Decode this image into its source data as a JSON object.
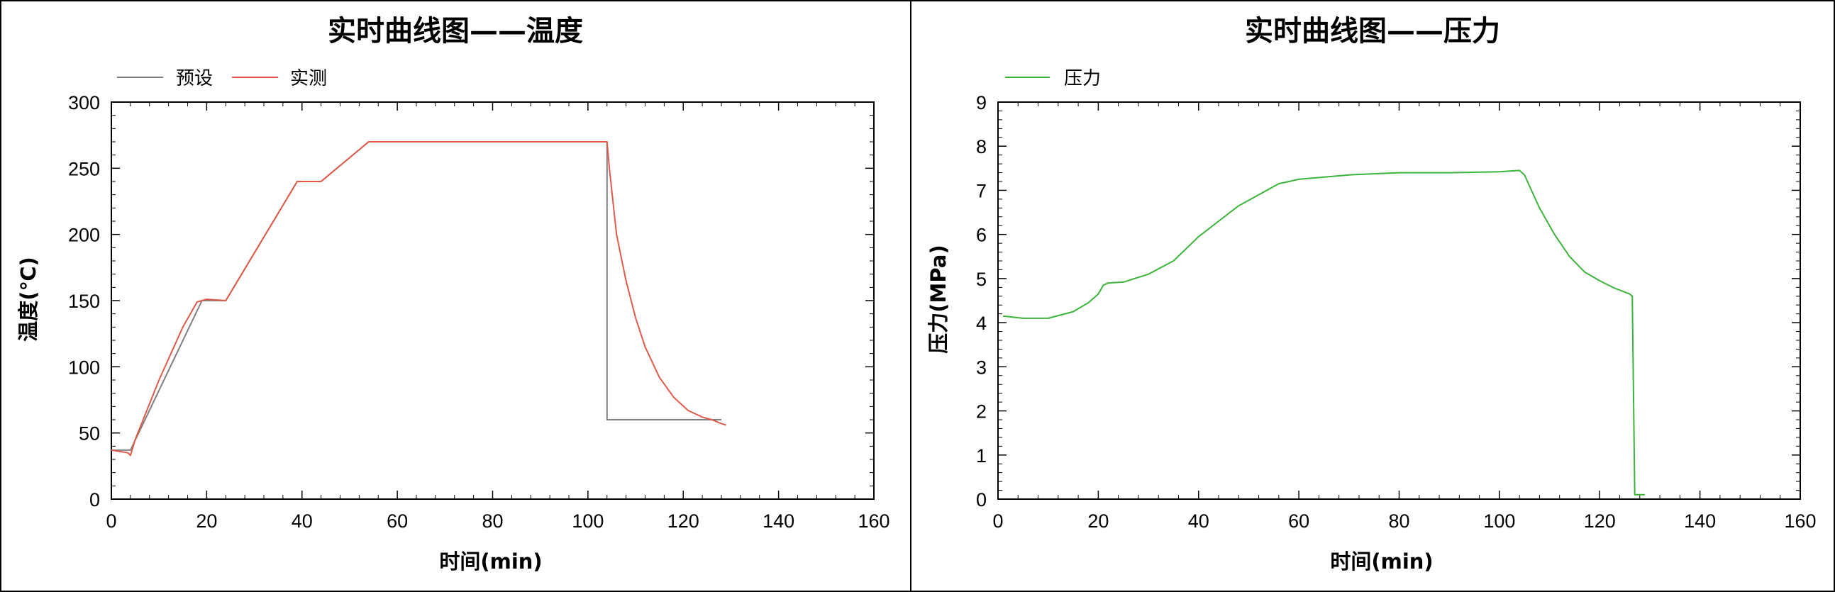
{
  "chart_data": [
    {
      "type": "line",
      "title": "实时曲线图——温度",
      "xlabel": "时间(min)",
      "ylabel": "温度(℃)",
      "xlim": [
        0,
        160
      ],
      "ylim": [
        0,
        300
      ],
      "xticks": [
        0,
        20,
        40,
        60,
        80,
        100,
        120,
        140,
        160
      ],
      "yticks": [
        0,
        50,
        100,
        150,
        200,
        250,
        300
      ],
      "legend_position": "top-left",
      "grid": false,
      "series": [
        {
          "name": "预设",
          "color": "#7f7f7f",
          "points": [
            [
              0,
              37
            ],
            [
              4,
              37
            ],
            [
              19,
              150
            ],
            [
              24,
              150
            ],
            [
              39,
              240
            ],
            [
              44,
              240
            ],
            [
              54,
              270
            ],
            [
              104,
              270
            ],
            [
              104,
              60
            ],
            [
              128,
              60
            ]
          ]
        },
        {
          "name": "实测",
          "color": "#e05a4a",
          "points": [
            [
              0,
              37
            ],
            [
              3.5,
              35
            ],
            [
              4,
              33
            ],
            [
              5,
              45
            ],
            [
              10,
              90
            ],
            [
              15,
              130
            ],
            [
              18,
              149
            ],
            [
              20,
              151
            ],
            [
              24,
              150
            ],
            [
              39,
              240
            ],
            [
              44,
              240
            ],
            [
              54,
              270
            ],
            [
              104,
              270
            ],
            [
              104.5,
              250
            ],
            [
              106,
              200
            ],
            [
              108,
              165
            ],
            [
              110,
              137
            ],
            [
              112,
              115
            ],
            [
              115,
              92
            ],
            [
              118,
              77
            ],
            [
              121,
              67
            ],
            [
              124,
              62
            ],
            [
              126,
              60
            ],
            [
              128,
              57
            ],
            [
              129,
              56
            ]
          ]
        }
      ]
    },
    {
      "type": "line",
      "title": "实时曲线图——压力",
      "xlabel": "时间(min)",
      "ylabel": "压力(MPa)",
      "xlim": [
        0,
        160
      ],
      "ylim": [
        0,
        9
      ],
      "xticks": [
        0,
        20,
        40,
        60,
        80,
        100,
        120,
        140,
        160
      ],
      "yticks": [
        0,
        1,
        2,
        3,
        4,
        5,
        6,
        7,
        8,
        9
      ],
      "legend_position": "top-left",
      "grid": false,
      "series": [
        {
          "name": "压力",
          "color": "#3cb43c",
          "points": [
            [
              1,
              4.15
            ],
            [
              5,
              4.1
            ],
            [
              10,
              4.1
            ],
            [
              15,
              4.25
            ],
            [
              18,
              4.45
            ],
            [
              20,
              4.65
            ],
            [
              21,
              4.85
            ],
            [
              22,
              4.9
            ],
            [
              25,
              4.92
            ],
            [
              30,
              5.1
            ],
            [
              35,
              5.4
            ],
            [
              40,
              5.95
            ],
            [
              44,
              6.3
            ],
            [
              48,
              6.65
            ],
            [
              52,
              6.9
            ],
            [
              56,
              7.15
            ],
            [
              60,
              7.25
            ],
            [
              70,
              7.35
            ],
            [
              80,
              7.4
            ],
            [
              90,
              7.4
            ],
            [
              100,
              7.42
            ],
            [
              104,
              7.45
            ],
            [
              105,
              7.35
            ],
            [
              108,
              6.6
            ],
            [
              111,
              6.0
            ],
            [
              114,
              5.5
            ],
            [
              117,
              5.15
            ],
            [
              120,
              4.95
            ],
            [
              123,
              4.78
            ],
            [
              126,
              4.65
            ],
            [
              126.5,
              4.6
            ],
            [
              127,
              0.1
            ],
            [
              129,
              0.1
            ]
          ]
        }
      ]
    }
  ]
}
